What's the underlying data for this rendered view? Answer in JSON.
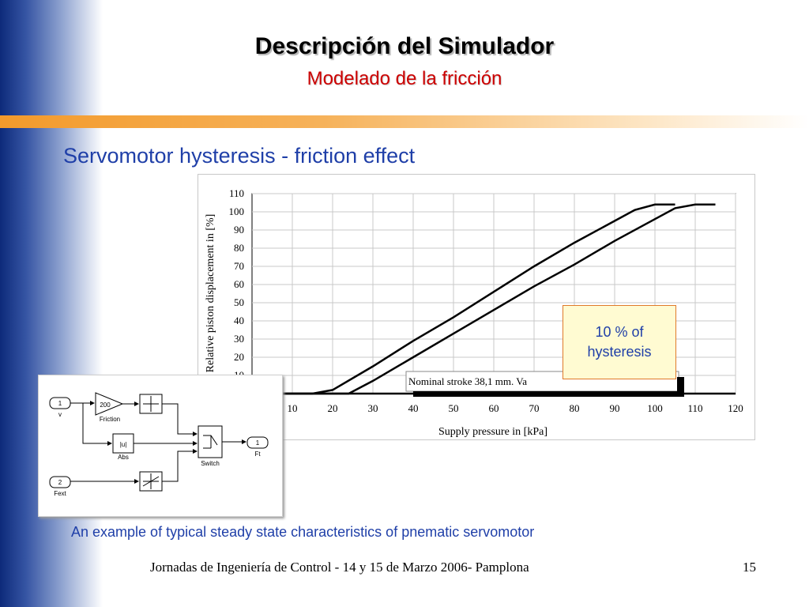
{
  "slide": {
    "title": "Descripción del Simulador",
    "subtitle": "Modelado de la fricción",
    "heading": "Servomotor hysteresis - friction effect",
    "callout": "10 % of hysteresis",
    "caption": "An example of typical steady state characteristics of  pnematic servomotor",
    "footer": "Jornadas de Ingeniería de Control - 14 y 15 de Marzo 2006- Pamplona",
    "page_number": "15"
  },
  "colors": {
    "title_shadow": "#b5b5b5",
    "subtitle": "#cc0000",
    "heading": "#1f3fa8",
    "left_band": "#0d2a7a",
    "orange_bar": "#f39a2b",
    "callout_bg": "#fffbd2",
    "callout_border": "#e07a2a"
  },
  "chart_data": {
    "type": "line",
    "xlabel": "Supply pressure in [kPa]",
    "ylabel": "Relative piston displacement in [%]",
    "xlim": [
      0,
      120
    ],
    "ylim": [
      0,
      110
    ],
    "x_ticks": [
      10,
      20,
      30,
      40,
      50,
      60,
      70,
      80,
      90,
      100,
      110,
      120
    ],
    "y_ticks": [
      10,
      20,
      30,
      40,
      50,
      60,
      70,
      80,
      90,
      100,
      110
    ],
    "grid": true,
    "annotation": "Nominal stroke 38,1 mm. Va",
    "series": [
      {
        "x": [
          0,
          15,
          20,
          30,
          40,
          50,
          60,
          70,
          80,
          90,
          95,
          100,
          105
        ],
        "y": [
          0,
          0,
          2,
          15,
          29,
          42,
          56,
          70,
          83,
          95,
          101,
          104,
          104
        ]
      },
      {
        "x": [
          0,
          24,
          30,
          40,
          50,
          60,
          70,
          80,
          90,
          100,
          105,
          110,
          115
        ],
        "y": [
          0,
          0,
          7,
          20,
          33,
          46,
          59,
          71,
          84,
          96,
          102,
          104,
          104
        ]
      }
    ]
  },
  "diagram": {
    "in1_num": "1",
    "in1_name": "v",
    "friction_gain": "200",
    "friction_name": "Friction",
    "abs_symbol": "|u|",
    "abs_name": "Abs",
    "in2_num": "2",
    "in2_name": "Fext",
    "switch_name": "Switch",
    "out_num": "1",
    "out_name": "Ft"
  }
}
